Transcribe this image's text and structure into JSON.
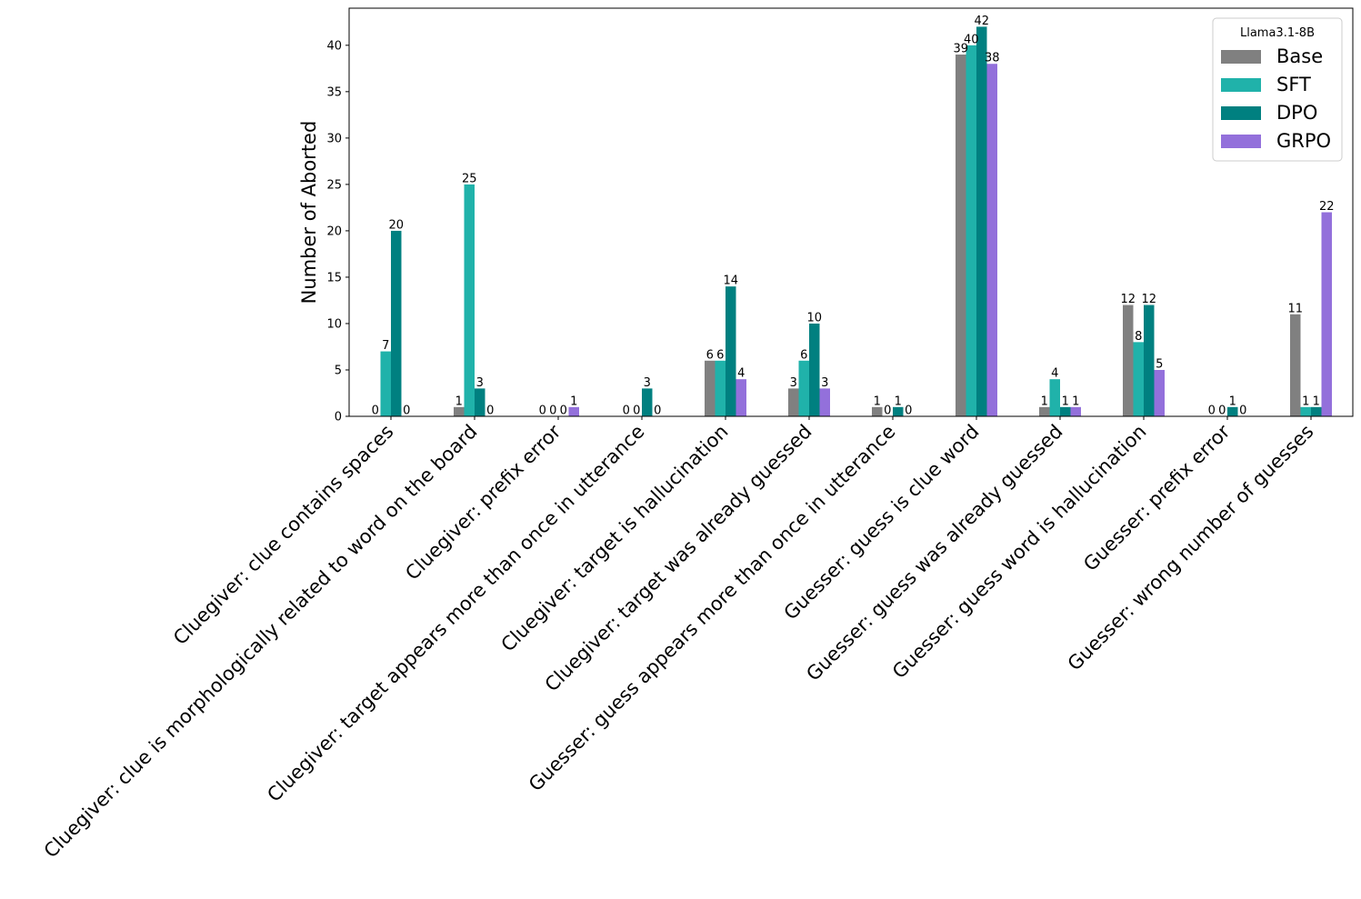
{
  "chart_data": {
    "type": "bar",
    "title": "",
    "xlabel": "",
    "ylabel": "Number of Aborted",
    "ylim": [
      0,
      44
    ],
    "yticks": [
      0,
      5,
      10,
      15,
      20,
      25,
      30,
      35,
      40
    ],
    "grid": false,
    "legend": {
      "title": "Llama3.1-8B",
      "position": "top-right"
    },
    "categories": [
      "Cluegiver: clue contains spaces",
      "Cluegiver: clue is morphologically related to word on the board",
      "Cluegiver: prefix error",
      "Cluegiver: target appears more than once in utterance",
      "Cluegiver: target is hallucination",
      "Cluegiver: target was already guessed",
      "Guesser: guess appears more than once in utterance",
      "Guesser: guess is clue word",
      "Guesser: guess was already guessed",
      "Guesser: guess word is hallucination",
      "Guesser: prefix error",
      "Guesser: wrong number of guesses"
    ],
    "series": [
      {
        "name": "Base",
        "color": "#808080",
        "values": [
          0,
          1,
          0,
          0,
          6,
          3,
          1,
          39,
          1,
          12,
          0,
          11
        ]
      },
      {
        "name": "SFT",
        "color": "#20b2aa",
        "values": [
          7,
          25,
          0,
          0,
          6,
          6,
          0,
          40,
          4,
          8,
          0,
          1
        ]
      },
      {
        "name": "DPO",
        "color": "#008080",
        "values": [
          20,
          3,
          0,
          3,
          14,
          10,
          1,
          42,
          1,
          12,
          1,
          1
        ]
      },
      {
        "name": "GRPO",
        "color": "#9370db",
        "values": [
          0,
          0,
          1,
          0,
          4,
          3,
          0,
          38,
          1,
          5,
          0,
          22
        ]
      }
    ]
  }
}
